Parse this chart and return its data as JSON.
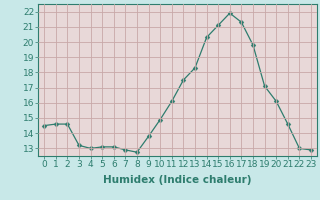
{
  "x": [
    0,
    1,
    2,
    3,
    4,
    5,
    6,
    7,
    8,
    9,
    10,
    11,
    12,
    13,
    14,
    15,
    16,
    17,
    18,
    19,
    20,
    21,
    22,
    23
  ],
  "y": [
    14.5,
    14.6,
    14.6,
    13.2,
    13.0,
    13.1,
    13.1,
    12.9,
    12.75,
    13.8,
    14.9,
    16.1,
    17.5,
    18.3,
    20.3,
    21.1,
    21.9,
    21.3,
    19.8,
    17.1,
    16.1,
    14.6,
    13.0,
    12.9
  ],
  "line_color": "#2e7d6e",
  "marker": "D",
  "marker_size": 2.5,
  "outer_bg": "#c8e8e8",
  "plot_bg": "#e8d8d8",
  "grid_color": "#c8a8a8",
  "xlabel": "Humidex (Indice chaleur)",
  "ylim": [
    12.5,
    22.5
  ],
  "xlim": [
    -0.5,
    23.5
  ],
  "yticks": [
    13,
    14,
    15,
    16,
    17,
    18,
    19,
    20,
    21,
    22
  ],
  "xticks": [
    0,
    1,
    2,
    3,
    4,
    5,
    6,
    7,
    8,
    9,
    10,
    11,
    12,
    13,
    14,
    15,
    16,
    17,
    18,
    19,
    20,
    21,
    22,
    23
  ],
  "tick_fontsize": 6.5,
  "xlabel_fontsize": 7.5
}
